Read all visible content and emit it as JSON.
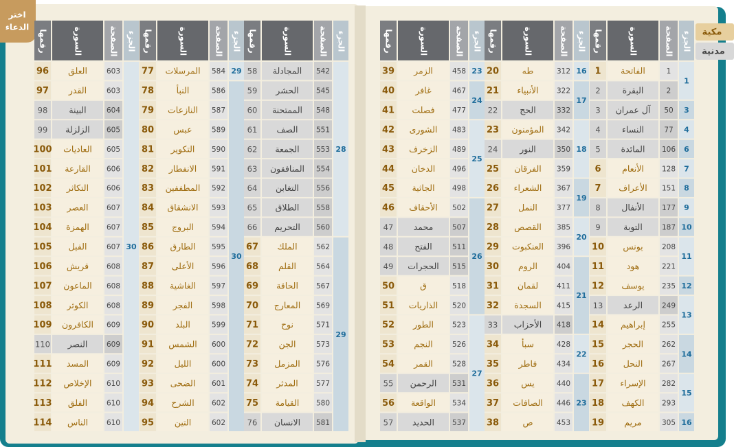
{
  "button": {
    "lines": [
      "اختر",
      "الدعاء"
    ]
  },
  "legend": {
    "makki": "مكية",
    "madani": "مدنية"
  },
  "headers": {
    "juz": "الجزء",
    "page": "الصفحة",
    "name": "السورة",
    "number": "رقمها"
  },
  "pages": [
    {
      "groups": [
        {
          "surahs": [
            [
              1,
              "الفاتحة",
              1,
              false
            ],
            [
              2,
              "البقرة",
              2,
              true
            ],
            [
              3,
              "آل عمران",
              50,
              true
            ],
            [
              4,
              "النساء",
              77,
              true
            ],
            [
              5,
              "المائدة",
              106,
              true
            ],
            [
              6,
              "الأنعام",
              128,
              false
            ],
            [
              7,
              "الأعراف",
              151,
              false
            ],
            [
              8,
              "الأنفال",
              177,
              true
            ],
            [
              9,
              "التوبة",
              187,
              true
            ],
            [
              10,
              "يونس",
              208,
              false
            ],
            [
              11,
              "هود",
              221,
              false
            ],
            [
              12,
              "يوسف",
              235,
              false
            ],
            [
              13,
              "الرعد",
              249,
              true
            ],
            [
              14,
              "إبراهيم",
              255,
              false
            ],
            [
              15,
              "الحجر",
              262,
              false
            ],
            [
              16,
              "النحل",
              267,
              false
            ],
            [
              17,
              "الإسراء",
              282,
              false
            ],
            [
              18,
              "الكهف",
              293,
              false
            ],
            [
              19,
              "مريم",
              305,
              false
            ]
          ],
          "juz": [
            {
              "value": 1,
              "rows": 2
            },
            {
              "value": 3,
              "rows": 1
            },
            {
              "value": 4,
              "rows": 1
            },
            {
              "value": 6,
              "rows": 1
            },
            {
              "value": 7,
              "rows": 1
            },
            {
              "value": 8,
              "rows": 1
            },
            {
              "value": 9,
              "rows": 1
            },
            {
              "value": 10,
              "rows": 1
            },
            {
              "value": 11,
              "rows": 2
            },
            {
              "value": 12,
              "rows": 1
            },
            {
              "value": 13,
              "rows": 2
            },
            {
              "value": 14,
              "rows": 2
            },
            {
              "value": 15,
              "rows": 2
            },
            {
              "value": 16,
              "rows": 1
            }
          ]
        },
        {
          "surahs": [
            [
              20,
              "طه",
              312,
              false
            ],
            [
              21,
              "الأنبياء",
              322,
              false
            ],
            [
              22,
              "الحج",
              332,
              true
            ],
            [
              23,
              "المؤمنون",
              342,
              false
            ],
            [
              24,
              "النور",
              350,
              true
            ],
            [
              25,
              "الفرقان",
              359,
              false
            ],
            [
              26,
              "الشعراء",
              367,
              false
            ],
            [
              27,
              "النمل",
              377,
              false
            ],
            [
              28,
              "القصص",
              385,
              false
            ],
            [
              29,
              "العنكبوت",
              396,
              false
            ],
            [
              30,
              "الروم",
              404,
              false
            ],
            [
              31,
              "لقمان",
              411,
              false
            ],
            [
              32,
              "السجدة",
              415,
              false
            ],
            [
              33,
              "الأحزاب",
              418,
              true
            ],
            [
              34,
              "سبأ",
              428,
              false
            ],
            [
              35,
              "فاطر",
              434,
              false
            ],
            [
              36,
              "يس",
              440,
              false
            ],
            [
              37,
              "الصافات",
              446,
              false
            ],
            [
              38,
              "ص",
              453,
              false
            ]
          ],
          "juz": [
            {
              "value": 16,
              "rows": 1
            },
            {
              "value": 17,
              "rows": 2
            },
            {
              "value": 18,
              "rows": 3
            },
            {
              "value": 19,
              "rows": 2
            },
            {
              "value": 20,
              "rows": 2
            },
            {
              "value": 21,
              "rows": 4
            },
            {
              "value": 22,
              "rows": 2
            },
            {
              "value": 23,
              "rows": 3
            }
          ]
        },
        {
          "surahs": [
            [
              39,
              "الزمر",
              458,
              false
            ],
            [
              40,
              "غافر",
              467,
              false
            ],
            [
              41,
              "فصلت",
              477,
              false
            ],
            [
              42,
              "الشورى",
              483,
              false
            ],
            [
              43,
              "الزخرف",
              489,
              false
            ],
            [
              44,
              "الدخان",
              496,
              false
            ],
            [
              45,
              "الجاثية",
              498,
              false
            ],
            [
              46,
              "الأحقاف",
              502,
              false
            ],
            [
              47,
              "محمد",
              507,
              true
            ],
            [
              48,
              "الفتح",
              511,
              true
            ],
            [
              49,
              "الحجرات",
              515,
              true
            ],
            [
              50,
              "ق",
              518,
              false
            ],
            [
              51,
              "الذاريات",
              520,
              false
            ],
            [
              52,
              "الطور",
              523,
              false
            ],
            [
              53,
              "النجم",
              526,
              false
            ],
            [
              54,
              "القمر",
              528,
              false
            ],
            [
              55,
              "الرحمن",
              531,
              true
            ],
            [
              56,
              "الواقعة",
              534,
              false
            ],
            [
              57,
              "الحديد",
              537,
              true
            ]
          ],
          "juz": [
            {
              "value": 23,
              "rows": 1
            },
            {
              "value": 24,
              "rows": 2
            },
            {
              "value": 25,
              "rows": 4
            },
            {
              "value": 26,
              "rows": 6
            },
            {
              "value": 27,
              "rows": 6
            }
          ]
        }
      ]
    },
    {
      "groups": [
        {
          "surahs": [
            [
              58,
              "المجادلة",
              542,
              true
            ],
            [
              59,
              "الحشر",
              545,
              true
            ],
            [
              60,
              "الممتحنة",
              548,
              true
            ],
            [
              61,
              "الصف",
              551,
              true
            ],
            [
              62,
              "الجمعة",
              553,
              true
            ],
            [
              63,
              "المنافقون",
              554,
              true
            ],
            [
              64,
              "التغابن",
              556,
              true
            ],
            [
              65,
              "الطلاق",
              558,
              true
            ],
            [
              66,
              "التحريم",
              560,
              true
            ],
            [
              67,
              "الملك",
              562,
              false
            ],
            [
              68,
              "القلم",
              564,
              false
            ],
            [
              69,
              "الحاقة",
              567,
              false
            ],
            [
              70,
              "المعارج",
              569,
              false
            ],
            [
              71,
              "نوح",
              571,
              false
            ],
            [
              72,
              "الجن",
              573,
              false
            ],
            [
              73,
              "المزمل",
              576,
              false
            ],
            [
              74,
              "المدثر",
              577,
              false
            ],
            [
              75,
              "القيامة",
              580,
              false
            ],
            [
              76,
              "الانسان",
              581,
              true
            ]
          ],
          "juz": [
            {
              "value": 28,
              "rows": 9
            },
            {
              "value": 29,
              "rows": 10
            }
          ]
        },
        {
          "surahs": [
            [
              77,
              "المرسلات",
              584,
              false
            ],
            [
              78,
              "النبأ",
              586,
              false
            ],
            [
              79,
              "النازعات",
              587,
              false
            ],
            [
              80,
              "عبس",
              589,
              false
            ],
            [
              81,
              "التكوير",
              590,
              false
            ],
            [
              82,
              "الانفطار",
              591,
              false
            ],
            [
              83,
              "المطففين",
              592,
              false
            ],
            [
              84,
              "الانشقاق",
              593,
              false
            ],
            [
              85,
              "البروج",
              594,
              false
            ],
            [
              86,
              "الطارق",
              595,
              false
            ],
            [
              87,
              "الأعلى",
              596,
              false
            ],
            [
              88,
              "الغاشية",
              597,
              false
            ],
            [
              89,
              "الفجر",
              598,
              false
            ],
            [
              90,
              "البلد",
              599,
              false
            ],
            [
              91,
              "الشمس",
              600,
              false
            ],
            [
              92,
              "الليل",
              600,
              false
            ],
            [
              93,
              "الضحى",
              601,
              false
            ],
            [
              94,
              "الشرح",
              602,
              false
            ],
            [
              95,
              "التين",
              602,
              false
            ]
          ],
          "juz": [
            {
              "value": 29,
              "rows": 1
            },
            {
              "value": 30,
              "rows": 18
            }
          ]
        },
        {
          "surahs": [
            [
              96,
              "العلق",
              603,
              false
            ],
            [
              97,
              "القدر",
              603,
              false
            ],
            [
              98,
              "البينة",
              604,
              true
            ],
            [
              99,
              "الزلزلة",
              605,
              true
            ],
            [
              100,
              "العاديات",
              605,
              false
            ],
            [
              101,
              "القارعة",
              606,
              false
            ],
            [
              102,
              "التكاثر",
              606,
              false
            ],
            [
              103,
              "العصر",
              607,
              false
            ],
            [
              104,
              "الهمزة",
              607,
              false
            ],
            [
              105,
              "الفيل",
              607,
              false
            ],
            [
              106,
              "قريش",
              608,
              false
            ],
            [
              107,
              "الماعون",
              608,
              false
            ],
            [
              108,
              "الكوثر",
              608,
              false
            ],
            [
              109,
              "الكافرون",
              609,
              false
            ],
            [
              110,
              "النصر",
              609,
              true
            ],
            [
              111,
              "المسد",
              609,
              false
            ],
            [
              112,
              "الإخلاص",
              610,
              false
            ],
            [
              113,
              "الفلق",
              610,
              false
            ],
            [
              114,
              "الناس",
              610,
              false
            ]
          ],
          "juz": [
            {
              "value": 30,
              "rows": 19
            }
          ]
        }
      ]
    }
  ]
}
